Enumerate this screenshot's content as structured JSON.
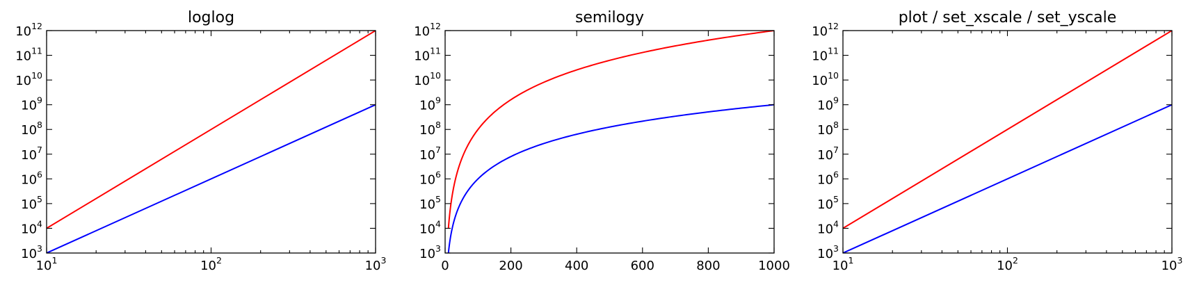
{
  "chart_data": [
    {
      "type": "line",
      "title": "loglog",
      "xscale": "log",
      "yscale": "log",
      "xlim": [
        10,
        1000
      ],
      "ylim": [
        1000,
        1000000000000
      ],
      "x_tick_labels": [
        {
          "base": "10",
          "exp": "1"
        },
        {
          "base": "10",
          "exp": "2"
        },
        {
          "base": "10",
          "exp": "3"
        }
      ],
      "y_tick_labels": [
        {
          "base": "10",
          "exp": "3"
        },
        {
          "base": "10",
          "exp": "4"
        },
        {
          "base": "10",
          "exp": "5"
        },
        {
          "base": "10",
          "exp": "6"
        },
        {
          "base": "10",
          "exp": "7"
        },
        {
          "base": "10",
          "exp": "8"
        },
        {
          "base": "10",
          "exp": "9"
        },
        {
          "base": "10",
          "exp": "10"
        },
        {
          "base": "10",
          "exp": "11"
        },
        {
          "base": "10",
          "exp": "12"
        }
      ],
      "grid": false,
      "series": [
        {
          "color": "#0000ff",
          "x": [
            10,
            1000
          ],
          "y": [
            1000,
            1000000000
          ]
        },
        {
          "color": "#ff0000",
          "x": [
            10,
            1000
          ],
          "y": [
            10000,
            1000000000000
          ]
        }
      ]
    },
    {
      "type": "line",
      "title": "semilogy",
      "xscale": "linear",
      "yscale": "log",
      "xlim": [
        0,
        1000
      ],
      "ylim": [
        1000,
        1000000000000
      ],
      "x_tick_labels": [
        {
          "text": "0"
        },
        {
          "text": "200"
        },
        {
          "text": "400"
        },
        {
          "text": "600"
        },
        {
          "text": "800"
        },
        {
          "text": "1000"
        }
      ],
      "y_tick_labels": [
        {
          "base": "10",
          "exp": "3"
        },
        {
          "base": "10",
          "exp": "4"
        },
        {
          "base": "10",
          "exp": "5"
        },
        {
          "base": "10",
          "exp": "6"
        },
        {
          "base": "10",
          "exp": "7"
        },
        {
          "base": "10",
          "exp": "8"
        },
        {
          "base": "10",
          "exp": "9"
        },
        {
          "base": "10",
          "exp": "10"
        },
        {
          "base": "10",
          "exp": "11"
        },
        {
          "base": "10",
          "exp": "12"
        }
      ],
      "grid": false,
      "series": [
        {
          "color": "#0000ff",
          "x": [
            10,
            20,
            50,
            100,
            200,
            400,
            600,
            800,
            1000
          ],
          "y": [
            1000,
            8000,
            125000,
            1000000,
            8000000,
            64000000,
            216000000,
            512000000,
            1000000000
          ]
        },
        {
          "color": "#ff0000",
          "x": [
            10,
            20,
            50,
            100,
            200,
            400,
            600,
            800,
            1000
          ],
          "y": [
            10000,
            160000,
            6250000,
            100000000,
            1600000000,
            25600000000,
            129600000000,
            409600000000,
            1000000000000
          ]
        }
      ]
    },
    {
      "type": "line",
      "title": "plot / set_xscale / set_yscale",
      "xscale": "log",
      "yscale": "log",
      "xlim": [
        10,
        1000
      ],
      "ylim": [
        1000,
        1000000000000
      ],
      "x_tick_labels": [
        {
          "base": "10",
          "exp": "1"
        },
        {
          "base": "10",
          "exp": "2"
        },
        {
          "base": "10",
          "exp": "3"
        }
      ],
      "y_tick_labels": [
        {
          "base": "10",
          "exp": "3"
        },
        {
          "base": "10",
          "exp": "4"
        },
        {
          "base": "10",
          "exp": "5"
        },
        {
          "base": "10",
          "exp": "6"
        },
        {
          "base": "10",
          "exp": "7"
        },
        {
          "base": "10",
          "exp": "8"
        },
        {
          "base": "10",
          "exp": "9"
        },
        {
          "base": "10",
          "exp": "10"
        },
        {
          "base": "10",
          "exp": "11"
        },
        {
          "base": "10",
          "exp": "12"
        }
      ],
      "grid": false,
      "series": [
        {
          "color": "#0000ff",
          "x": [
            10,
            1000
          ],
          "y": [
            1000,
            1000000000
          ]
        },
        {
          "color": "#ff0000",
          "x": [
            10,
            1000
          ],
          "y": [
            10000,
            1000000000000
          ]
        }
      ]
    }
  ]
}
